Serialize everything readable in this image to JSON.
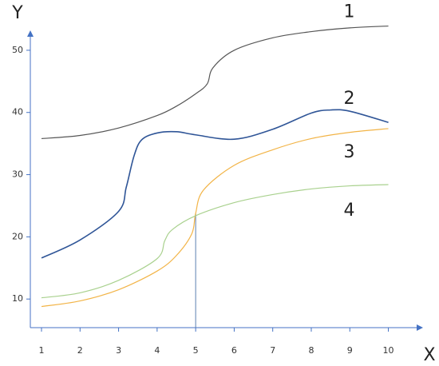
{
  "chart_data": {
    "type": "line",
    "x_label": "X",
    "y_label": "Y",
    "xlim": [
      0.71,
      10.9
    ],
    "ylim": [
      5.4,
      53.2
    ],
    "xticks": [
      1,
      2,
      3,
      4,
      5,
      6,
      7,
      8,
      9,
      10
    ],
    "yticks": [
      10,
      20,
      30,
      40,
      50
    ],
    "axis_color": "#4472c4",
    "guide": {
      "x": 5,
      "y": 23.8,
      "color": "#5b7fb0"
    },
    "series": [
      {
        "name": "1",
        "color": "#555555",
        "x": [
          1,
          2,
          3,
          4,
          4.5,
          5,
          5.3,
          5.45,
          6,
          7,
          8,
          9,
          10
        ],
        "values": [
          35.8,
          36.3,
          37.5,
          39.5,
          41,
          43,
          44.6,
          47.2,
          50,
          52,
          53,
          53.6,
          53.9
        ]
      },
      {
        "name": "2",
        "color": "#2f5597",
        "x": [
          1,
          2,
          3,
          3.2,
          3.4,
          3.6,
          4,
          4.5,
          5,
          6,
          7,
          8,
          8.5,
          9,
          10
        ],
        "values": [
          16.6,
          19.5,
          24.1,
          28,
          33,
          35.6,
          36.7,
          36.9,
          36.4,
          35.7,
          37.3,
          39.9,
          40.4,
          40.2,
          38.4
        ]
      },
      {
        "name": "3",
        "color": "#f2b447",
        "x": [
          1,
          2,
          3,
          4,
          4.5,
          4.9,
          5,
          5.2,
          6,
          7,
          8,
          9,
          10
        ],
        "values": [
          8.8,
          9.7,
          11.5,
          14.5,
          17,
          20.5,
          23.8,
          27.5,
          31.5,
          34,
          35.8,
          36.8,
          37.4
        ]
      },
      {
        "name": "4",
        "color": "#a9d18e",
        "x": [
          1,
          2,
          3,
          4,
          4.2,
          4.4,
          5,
          6,
          7,
          8,
          9,
          10
        ],
        "values": [
          10.2,
          11,
          13,
          16.5,
          19.4,
          21.2,
          23.4,
          25.5,
          26.8,
          27.7,
          28.2,
          28.4
        ]
      }
    ]
  }
}
